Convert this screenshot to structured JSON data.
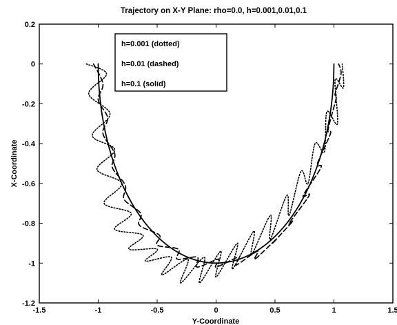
{
  "chart_data": {
    "type": "line",
    "title": "Trajectory on X-Y Plane: rho=0.0, h=0.001,0.01,0.1",
    "xlabel": "Y-Coordinate",
    "ylabel": "X-Coordinate",
    "xlim": [
      -1.5,
      1.5
    ],
    "ylim": [
      -1.2,
      0.2
    ],
    "xticks": [
      "-1.5",
      "-1",
      "-0.5",
      "0",
      "0.5",
      "1",
      "1.5"
    ],
    "yticks": [
      "0.2",
      "0",
      "-0.2",
      "-0.4",
      "-0.6",
      "-0.8",
      "-1",
      "-1.2"
    ],
    "grid": false,
    "legend_position": "top-left",
    "legend": [
      "h=0.001 (dotted)",
      "h=0.01 (dashed)",
      "h=0.1 (solid)"
    ],
    "series": [
      {
        "name": "h=0.001 (dotted)",
        "style": "dotted",
        "x": [
          -1.1,
          -0.93,
          -1.08,
          -0.9,
          -1.05,
          -0.86,
          -1.01,
          -0.8,
          -0.95,
          -0.72,
          -0.86,
          -0.62,
          -0.74,
          -0.5,
          -0.6,
          -0.38,
          -0.46,
          -0.24,
          -0.3,
          -0.1,
          -0.14,
          0.04,
          0.0,
          0.18,
          0.14,
          0.32,
          0.3,
          0.46,
          0.46,
          0.6,
          0.62,
          0.72,
          0.78,
          0.84,
          0.92,
          0.94,
          1.03,
          1.01,
          1.08,
          1.07
        ],
        "y": [
          0.0,
          -0.05,
          -0.15,
          -0.25,
          -0.36,
          -0.43,
          -0.53,
          -0.6,
          -0.7,
          -0.75,
          -0.83,
          -0.86,
          -0.93,
          -0.93,
          -0.99,
          -0.97,
          -1.06,
          -0.98,
          -1.1,
          -0.97,
          -1.1,
          -0.94,
          -1.07,
          -0.9,
          -1.03,
          -0.84,
          -0.96,
          -0.76,
          -0.88,
          -0.66,
          -0.76,
          -0.54,
          -0.6,
          -0.4,
          -0.44,
          -0.24,
          -0.3,
          -0.08,
          -0.12,
          0.0
        ]
      },
      {
        "name": "h=0.01 (dashed)",
        "style": "dashed",
        "x": [
          -1.04,
          -0.96,
          -1.0,
          -0.92,
          -0.96,
          -0.86,
          -0.88,
          -0.77,
          -0.78,
          -0.64,
          -0.65,
          -0.48,
          -0.5,
          -0.32,
          -0.33,
          -0.16,
          -0.16,
          0.02,
          0.0,
          0.19,
          0.17,
          0.35,
          0.33,
          0.51,
          0.48,
          0.65,
          0.62,
          0.79,
          0.74,
          0.89,
          0.86,
          0.97,
          0.95,
          1.02,
          1.01,
          1.06,
          1.04
        ],
        "y": [
          0.0,
          -0.1,
          -0.18,
          -0.27,
          -0.35,
          -0.45,
          -0.52,
          -0.61,
          -0.68,
          -0.75,
          -0.81,
          -0.86,
          -0.91,
          -0.93,
          -0.98,
          -0.97,
          -1.02,
          -0.98,
          -1.02,
          -0.97,
          -1.01,
          -0.94,
          -0.98,
          -0.88,
          -0.9,
          -0.79,
          -0.8,
          -0.66,
          -0.66,
          -0.52,
          -0.5,
          -0.35,
          -0.33,
          -0.17,
          -0.15,
          -0.05,
          0.0
        ]
      },
      {
        "name": "h=0.1 (solid)",
        "style": "solid",
        "x": [
          -1.0,
          -0.9962,
          -0.9848,
          -0.9659,
          -0.9397,
          -0.9063,
          -0.866,
          -0.8192,
          -0.766,
          -0.7071,
          -0.6428,
          -0.5736,
          -0.5,
          -0.4226,
          -0.342,
          -0.2588,
          -0.1736,
          -0.0872,
          0.0,
          0.0872,
          0.1736,
          0.2588,
          0.342,
          0.4226,
          0.5,
          0.5736,
          0.6428,
          0.7071,
          0.766,
          0.8192,
          0.866,
          0.9063,
          0.9397,
          0.9659,
          0.9848,
          0.9962,
          1.0
        ],
        "y": [
          0.0,
          -0.0872,
          -0.1736,
          -0.2588,
          -0.342,
          -0.4226,
          -0.5,
          -0.5736,
          -0.6428,
          -0.7071,
          -0.766,
          -0.8192,
          -0.866,
          -0.9063,
          -0.9397,
          -0.9659,
          -0.9848,
          -0.9962,
          -1.0,
          -0.9962,
          -0.9848,
          -0.9659,
          -0.9397,
          -0.9063,
          -0.866,
          -0.8192,
          -0.766,
          -0.7071,
          -0.6428,
          -0.5736,
          -0.5,
          -0.4226,
          -0.342,
          -0.2588,
          -0.1736,
          -0.0872,
          0.0
        ]
      }
    ]
  }
}
